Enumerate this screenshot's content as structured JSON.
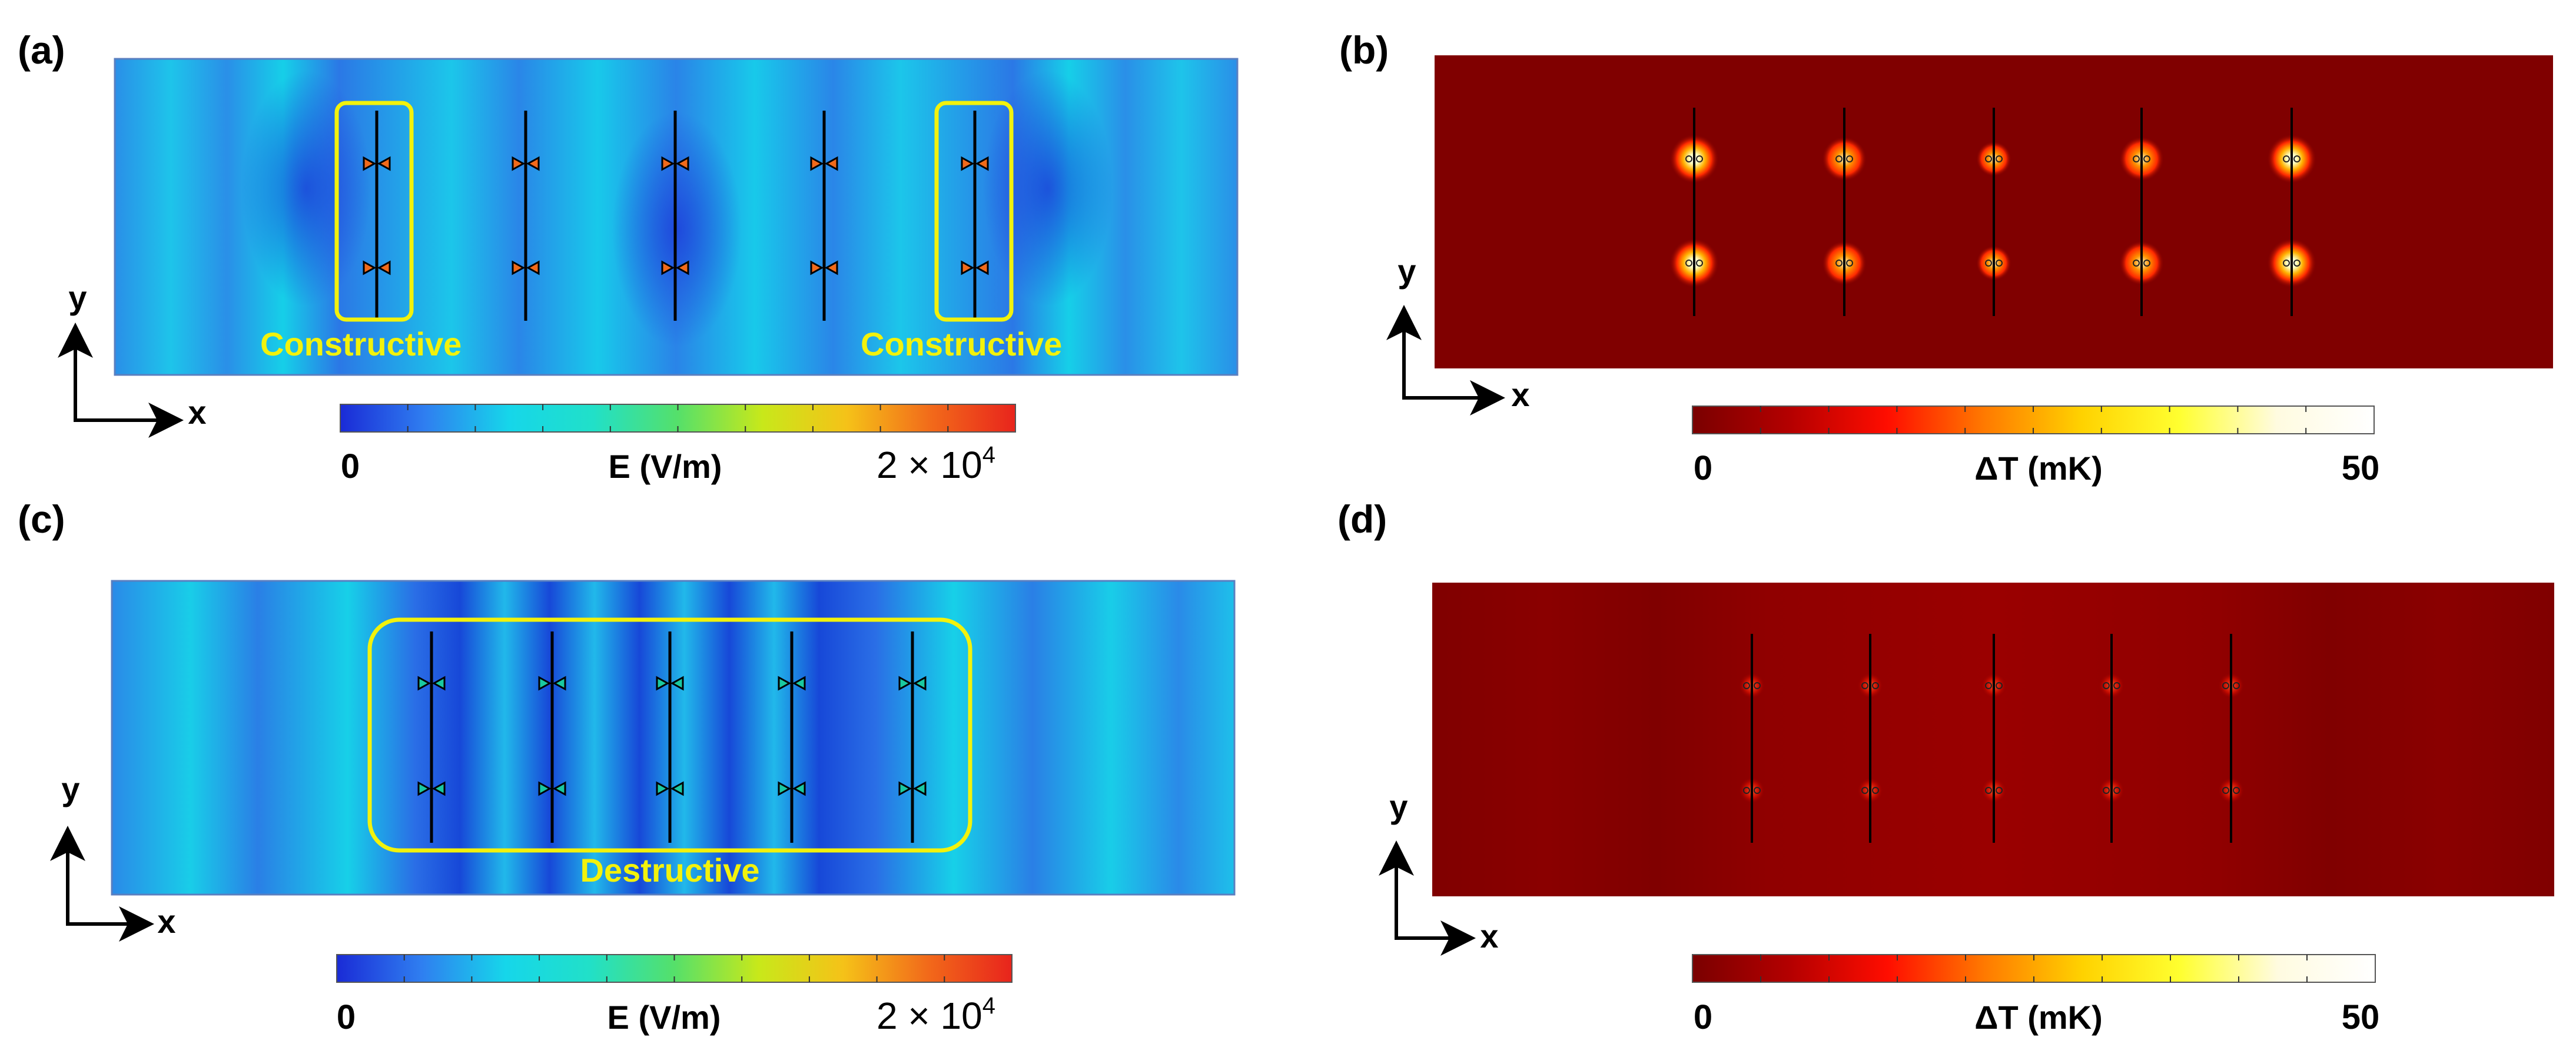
{
  "panels": [
    {
      "label": "(a)",
      "kind": "efield",
      "pattern": "constructive",
      "annotations": [
        "Constructive",
        "Constructive"
      ],
      "axis_labels": {
        "x": "x",
        "y": "y"
      },
      "colorbar": {
        "min": "0",
        "quantity": "E (V/m)",
        "max_base": "2 × 10",
        "max_exp": "4"
      }
    },
    {
      "label": "(b)",
      "kind": "temperature",
      "pattern": "constructive",
      "axis_labels": {
        "x": "x",
        "y": "y"
      },
      "colorbar": {
        "min": "0",
        "quantity": "ΔT (mK)",
        "max": "50"
      }
    },
    {
      "label": "(c)",
      "kind": "efield",
      "pattern": "destructive",
      "annotations": [
        "Destructive"
      ],
      "axis_labels": {
        "x": "x",
        "y": "y"
      },
      "colorbar": {
        "min": "0",
        "quantity": "E (V/m)",
        "max_base": "2 × 10",
        "max_exp": "4"
      }
    },
    {
      "label": "(d)",
      "kind": "temperature",
      "pattern": "destructive",
      "axis_labels": {
        "x": "x",
        "y": "y"
      },
      "colorbar": {
        "min": "0",
        "quantity": "ΔT (mK)",
        "max": "50"
      }
    }
  ],
  "colors": {
    "efield_scale": [
      "#1a2bd6",
      "#2f7ef0",
      "#16d6ea",
      "#21e0c8",
      "#55e06a",
      "#c8e81a",
      "#f5c218",
      "#f26a1a",
      "#e8241c"
    ],
    "temperature_scale": [
      "#7a0000",
      "#b40000",
      "#ff0d00",
      "#ff7a00",
      "#ffd200",
      "#ffff30",
      "#fffbe0",
      "#ffffff"
    ],
    "annotation": "#f2f20c",
    "thermal_background": "#800000"
  }
}
